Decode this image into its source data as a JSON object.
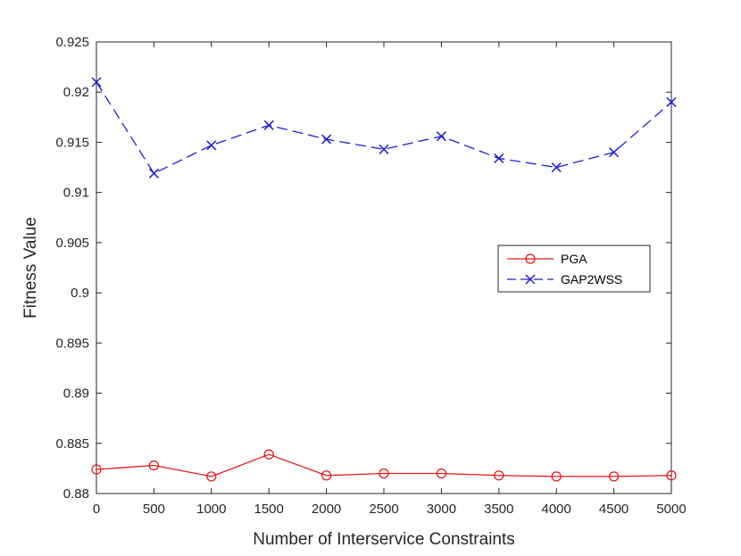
{
  "chart_data": {
    "type": "line",
    "title": "",
    "xlabel": "Number of Interservice Constraints",
    "ylabel": "Fitness Value",
    "x": [
      0,
      500,
      1000,
      1500,
      2000,
      2500,
      3000,
      3500,
      4000,
      4500,
      5000
    ],
    "xticks": [
      "0",
      "500",
      "1000",
      "1500",
      "2000",
      "2500",
      "3000",
      "3500",
      "4000",
      "4500",
      "5000"
    ],
    "yticks": [
      "0.88",
      "0.885",
      "0.89",
      "0.895",
      "0.9",
      "0.905",
      "0.91",
      "0.915",
      "0.92",
      "0.925"
    ],
    "xlim": [
      0,
      5000
    ],
    "ylim": [
      0.88,
      0.925
    ],
    "grid": false,
    "legend_position": "middle-right",
    "series": [
      {
        "name": "PGA",
        "color": "#e31a1c",
        "line_style": "solid",
        "marker": "circle",
        "values": [
          0.8824,
          0.8828,
          0.8817,
          0.8839,
          0.8818,
          0.882,
          0.882,
          0.8818,
          0.8817,
          0.8817,
          0.8818
        ]
      },
      {
        "name": "GAP2WSS",
        "color": "#1f1fd6",
        "line_style": "dashed",
        "marker": "x",
        "values": [
          0.921,
          0.9119,
          0.9147,
          0.9167,
          0.9153,
          0.9143,
          0.9156,
          0.9134,
          0.9125,
          0.914,
          0.919
        ]
      }
    ]
  }
}
